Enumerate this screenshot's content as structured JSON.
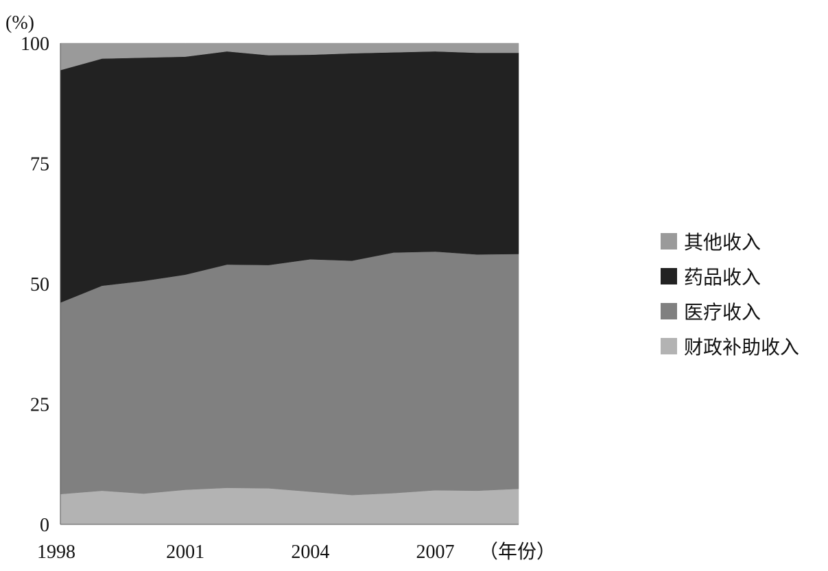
{
  "chart_data": {
    "type": "area",
    "stacked": true,
    "x": [
      1998,
      1999,
      2000,
      2001,
      2002,
      2003,
      2004,
      2005,
      2006,
      2007,
      2008,
      2009
    ],
    "x_tick_labels": [
      "1998",
      "2001",
      "2004",
      "2007"
    ],
    "x_ticks": [
      1998,
      2001,
      2004,
      2007
    ],
    "xlabel": "（年份）",
    "ylabel": "(%)",
    "ylim": [
      0,
      100
    ],
    "y_ticks": [
      0,
      25,
      50,
      75,
      100
    ],
    "y_tick_labels": [
      "0",
      "25",
      "50",
      "75",
      "100"
    ],
    "grid": false,
    "legend_position": "right",
    "legend_order": [
      "其他收入",
      "药品收入",
      "医疗收入",
      "财政补助收入"
    ],
    "series": [
      {
        "name": "财政补助收入",
        "color": "#b3b3b3",
        "values": [
          6.3,
          7.0,
          6.4,
          7.2,
          7.6,
          7.5,
          6.8,
          6.1,
          6.5,
          7.1,
          7.0,
          7.4
        ]
      },
      {
        "name": "医疗收入",
        "color": "#808080",
        "values": [
          39.8,
          42.6,
          44.2,
          44.7,
          46.4,
          46.4,
          48.3,
          48.7,
          50.0,
          49.6,
          49.1,
          48.8
        ]
      },
      {
        "name": "药品收入",
        "color": "#222222",
        "values": [
          48.3,
          47.2,
          46.4,
          45.3,
          44.3,
          43.6,
          42.5,
          43.1,
          41.6,
          41.6,
          41.9,
          41.8
        ]
      },
      {
        "name": "其他收入",
        "color": "#9a9a9a",
        "values": [
          5.6,
          3.2,
          3.0,
          2.8,
          1.7,
          2.5,
          2.4,
          2.1,
          1.9,
          1.7,
          2.0,
          2.0
        ]
      }
    ]
  }
}
